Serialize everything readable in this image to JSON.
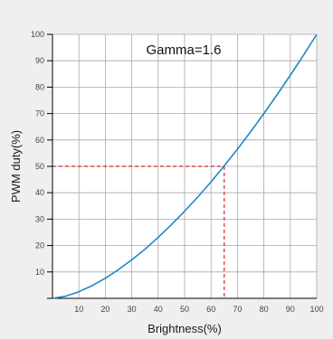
{
  "chart_data": {
    "type": "line",
    "title": "",
    "annotation": "Gamma=1.6",
    "xlabel": "Brightness(%)",
    "ylabel": "PWM duty(%)",
    "xlim": [
      0,
      100
    ],
    "ylim": [
      0,
      100
    ],
    "x_ticks": [
      10,
      20,
      30,
      40,
      50,
      60,
      70,
      80,
      90,
      100
    ],
    "y_ticks": [
      10,
      20,
      30,
      40,
      50,
      60,
      70,
      80,
      90,
      100
    ],
    "grid": true,
    "series": [
      {
        "x": [
          0,
          5,
          10,
          15,
          20,
          25,
          30,
          35,
          40,
          45,
          50,
          55,
          60,
          65,
          70,
          75,
          80,
          85,
          90,
          95,
          100
        ],
        "values": [
          0,
          0.8,
          2.5,
          4.8,
          7.6,
          10.9,
          14.6,
          18.6,
          23.1,
          27.9,
          33.0,
          38.4,
          44.1,
          50.2,
          56.5,
          63.1,
          70.0,
          77.1,
          84.5,
          92.1,
          100
        ]
      }
    ],
    "reference_point": {
      "x": 65,
      "y": 50
    }
  },
  "colors": {
    "curve": "#1f87c9",
    "reference": "#d9262a",
    "grid": "#a8a8a8",
    "axis": "#000000",
    "background": "#efefef",
    "plot_background": "#ffffff"
  }
}
